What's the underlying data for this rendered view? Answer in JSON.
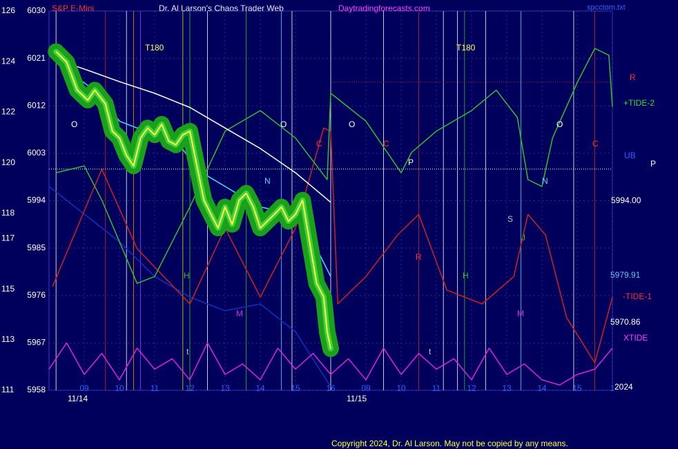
{
  "chart_data": {
    "type": "line",
    "title": "Dr. Al Larson's Chaos Trader Web",
    "subtitle": "S&P E-Mini",
    "site": "Daytradingforecasts.com",
    "file": "spcctom.txt",
    "copyright": "Copyright 2024, Dr. Al Larson. May not be copied by any means.",
    "xlim": [
      0,
      16
    ],
    "xticks": [
      {
        "value": 1,
        "label": "09"
      },
      {
        "value": 2,
        "label": "10"
      },
      {
        "value": 3,
        "label": "11"
      },
      {
        "value": 4,
        "label": "12"
      },
      {
        "value": 5,
        "label": "13"
      },
      {
        "value": 6,
        "label": "14"
      },
      {
        "value": 7,
        "label": "15"
      },
      {
        "value": 8,
        "label": "16"
      },
      {
        "value": 9,
        "label": "09"
      },
      {
        "value": 10,
        "label": "10"
      },
      {
        "value": 11,
        "label": "11"
      },
      {
        "value": 12,
        "label": "12"
      },
      {
        "value": 13,
        "label": "13"
      },
      {
        "value": 14,
        "label": "14"
      },
      {
        "value": 15,
        "label": "15"
      },
      {
        "value": 16,
        "label": "1"
      }
    ],
    "ylim": [
      5958,
      6030
    ],
    "yticks": [
      5958,
      5967,
      5976,
      5985,
      5994,
      6003,
      6012,
      6021,
      6030
    ],
    "y2lim": [
      111,
      126
    ],
    "y2ticks": [
      111,
      113,
      115,
      117,
      118,
      120,
      122,
      124,
      126
    ],
    "grid": true,
    "hlines": [
      {
        "value": 6000,
        "color": "#ffffff"
      },
      {
        "value": 6016.5,
        "color": "#c02020"
      }
    ],
    "vlines": [
      {
        "value": 0.2,
        "color": "#ffffff"
      },
      {
        "value": 1.6,
        "color": "#d02020"
      },
      {
        "value": 2.2,
        "color": "#ffffff"
      },
      {
        "value": 2.4,
        "color": "#ff9900"
      },
      {
        "value": 2.6,
        "color": "#a040ff"
      },
      {
        "value": 3.8,
        "color": "#e0e000"
      },
      {
        "value": 4.0,
        "color": "#30c030"
      },
      {
        "value": 4.5,
        "color": "#ffffff"
      },
      {
        "value": 5.6,
        "color": "#30c030"
      },
      {
        "value": 6.6,
        "color": "#40e0ff"
      },
      {
        "value": 6.9,
        "color": "#ffffff"
      },
      {
        "value": 8.0,
        "color": "#ffffff"
      },
      {
        "value": 9.5,
        "color": "#ffffff"
      },
      {
        "value": 10.5,
        "color": "#d02020"
      },
      {
        "value": 11.2,
        "color": "#ffffff"
      },
      {
        "value": 11.6,
        "color": "#ffffff"
      },
      {
        "value": 11.8,
        "color": "#30c030"
      },
      {
        "value": 12.4,
        "color": "#ffffff"
      },
      {
        "value": 13.4,
        "color": "#40e0ff"
      },
      {
        "value": 14.9,
        "color": "#ffffff"
      },
      {
        "value": 15.5,
        "color": "#d02020"
      }
    ],
    "annotations": [
      "T180",
      "T180",
      "O",
      "O",
      "O",
      "O",
      "C",
      "C",
      "C",
      "P",
      "N",
      "N",
      "S",
      "J",
      "R",
      "H",
      "H",
      "M",
      "M",
      "t",
      "t",
      "R",
      "+TIDE-2",
      "UB",
      "P",
      "5994.00",
      "5979.91",
      "-TIDE-1",
      "5970.86",
      "XTIDE",
      "2024",
      "11/14",
      "11/15"
    ],
    "series": [
      {
        "name": "lower band",
        "color": "#1030c0",
        "x": [
          0,
          2,
          3,
          4,
          5,
          6,
          7,
          8
        ],
        "values": [
          5996.7,
          5986.2,
          5979.6,
          5975.7,
          5973.1,
          5974.4,
          5969.1,
          5958.7
        ]
      },
      {
        "name": "XTIDE",
        "color": "#e020e0",
        "x": [
          0,
          0.5,
          1,
          1.5,
          2,
          2.5,
          3,
          3.5,
          4,
          4.5,
          5,
          5.5,
          6,
          6.5,
          7,
          7.5,
          8,
          8.5,
          9,
          9.5,
          10,
          10.5,
          11,
          11.5,
          12,
          12.5,
          13,
          13.5,
          14,
          14.5,
          15,
          15.5,
          16
        ],
        "values": [
          5962,
          5967,
          5961,
          5965,
          5960,
          5966,
          5962,
          5964,
          5960,
          5967,
          5961,
          5963,
          5960,
          5966,
          5962,
          5965,
          5961,
          5964,
          5960,
          5966,
          5961,
          5965,
          5962,
          5964,
          5960,
          5966,
          5961,
          5963,
          5960,
          5959,
          5961,
          5962,
          5966
        ]
      },
      {
        "name": "-TIDE-1",
        "color": "#d02020",
        "x": [
          0.1,
          1.5,
          2.5,
          4,
          5,
          6,
          7,
          7.8,
          8,
          8.2,
          9,
          9.9,
          10.5,
          11.3,
          12.3,
          13.2,
          13.6,
          14.1,
          14.7,
          15.5,
          16
        ],
        "values": [
          5977.7,
          6000.0,
          5984.9,
          5974.4,
          5988.8,
          5975.7,
          5988.8,
          6007.8,
          6007.2,
          5974.4,
          5979.6,
          5987.5,
          5991.4,
          5977.0,
          5974.4,
          5979.6,
          5991.4,
          5987.5,
          5971.8,
          5963.2,
          5975.7
        ]
      },
      {
        "name": "+TIDE-2",
        "color": "#30c030",
        "x": [
          0.2,
          1,
          1.5,
          2.5,
          3,
          4,
          5,
          6,
          7,
          7.9,
          8,
          9,
          10,
          10.3,
          11,
          12,
          12.7,
          13.3,
          13.6,
          14,
          14.3,
          15,
          15.5,
          15.9,
          16
        ],
        "values": [
          5999.3,
          6000.6,
          5994.1,
          5978.3,
          5979.6,
          5992.8,
          6007.2,
          6011.1,
          6005.9,
          5998.0,
          6014.4,
          6009.1,
          5999.3,
          6003.2,
          6007.2,
          6011.1,
          6015.0,
          6009.8,
          5998.0,
          5996.7,
          6005.9,
          6016.4,
          6022.9,
          6021.6,
          6011.8
        ]
      },
      {
        "name": "slow average",
        "color": "#ffffff",
        "x": [
          0.3,
          1,
          2,
          3,
          4,
          5,
          6,
          7,
          8
        ],
        "values": [
          6020.6,
          6019.0,
          6016.6,
          6014.4,
          6011.7,
          6007.8,
          6003.9,
          5999.3,
          5993.7
        ]
      },
      {
        "name": "fast average",
        "color": "#40e0ff",
        "x": [
          0.3,
          1,
          1.5,
          2,
          2.5,
          3,
          3.5,
          4,
          4.5,
          5,
          5.5,
          6,
          6.5,
          7,
          7.5,
          8
        ],
        "values": [
          6019.6,
          6016.4,
          6013.7,
          6009.1,
          6007.8,
          6008.5,
          6006.5,
          6001.9,
          5998.7,
          5996.7,
          5994.7,
          5992.8,
          5992.1,
          5992.8,
          5986.2,
          5979.6
        ]
      },
      {
        "name": "price",
        "color": "#ffff40",
        "halo_color": "#1aa01a",
        "x": [
          0.2,
          0.5,
          0.8,
          1.1,
          1.3,
          1.6,
          1.8,
          2.0,
          2.2,
          2.4,
          2.6,
          2.8,
          3.0,
          3.2,
          3.4,
          3.6,
          3.8,
          4.0,
          4.2,
          4.4,
          4.6,
          4.8,
          5.0,
          5.2,
          5.4,
          5.6,
          5.8,
          6.0,
          6.2,
          6.4,
          6.6,
          6.8,
          7.0,
          7.2,
          7.4,
          7.6,
          7.8,
          7.9,
          8.0
        ],
        "values": [
          6022.3,
          6020.3,
          6015.0,
          6013.1,
          6015.0,
          6012.4,
          6007.2,
          6005.9,
          6002.6,
          6000.6,
          6005.9,
          6007.8,
          6006.5,
          6008.5,
          6005.3,
          6004.6,
          6006.5,
          6007.2,
          6000.6,
          5994.1,
          5991.4,
          5988.8,
          5992.8,
          5989.5,
          5994.1,
          5995.4,
          5992.8,
          5988.8,
          5990.1,
          5991.4,
          5992.8,
          5990.1,
          5991.4,
          5994.1,
          5986.2,
          5978.3,
          5975.7,
          5969.1,
          5965.9
        ]
      }
    ]
  }
}
